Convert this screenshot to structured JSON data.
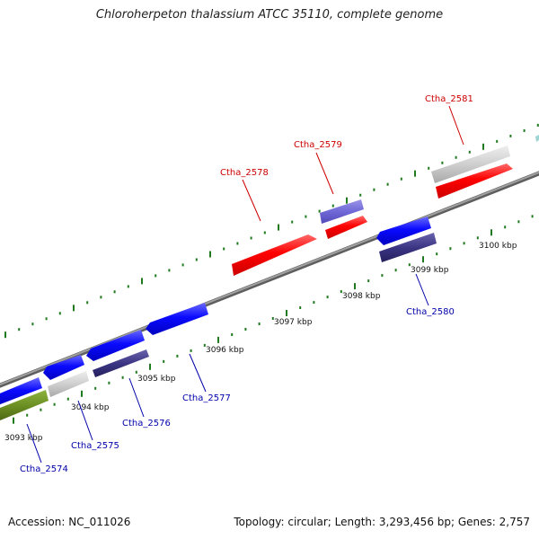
{
  "title": "Chloroherpeton thalassium ATCC 35110, complete genome",
  "footer": {
    "accession": "Accession: NC_011026",
    "summary": "Topology: circular; Length: 3,293,456 bp; Genes: 2,757"
  },
  "colors": {
    "backbone": "#8a8a8a",
    "tick": "#1f7a1f",
    "forward_label": "#cc0000",
    "reverse_label": "#0000aa"
  },
  "scale_labels": [
    "3093 kbp",
    "3094 kbp",
    "3095 kbp",
    "3096 kbp",
    "3097 kbp",
    "3098 kbp",
    "3099 kbp",
    "3100 kbp"
  ],
  "genes": [
    {
      "label": "Ctha_2574",
      "strand": "reverse"
    },
    {
      "label": "Ctha_2575",
      "strand": "reverse"
    },
    {
      "label": "Ctha_2576",
      "strand": "reverse"
    },
    {
      "label": "Ctha_2577",
      "strand": "reverse"
    },
    {
      "label": "Ctha_2578",
      "strand": "forward"
    },
    {
      "label": "Ctha_2579",
      "strand": "forward"
    },
    {
      "label": "Ctha_2580",
      "strand": "reverse"
    },
    {
      "label": "Ctha_2581",
      "strand": "forward"
    }
  ]
}
